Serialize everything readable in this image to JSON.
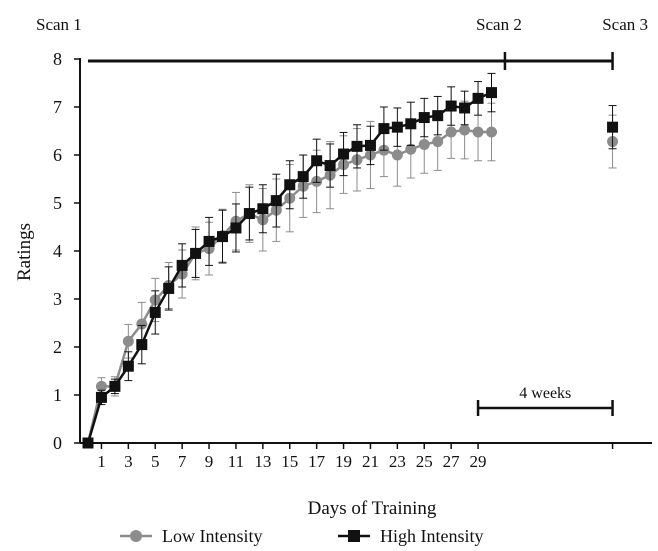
{
  "chart_data": {
    "type": "line",
    "title": "",
    "xlabel": "Days of Training",
    "ylabel": "Ratings",
    "ylim": [
      0,
      8
    ],
    "yticks": [
      "0",
      "1",
      "2",
      "3",
      "4",
      "5",
      "6",
      "7",
      "8"
    ],
    "xticks": [
      "1",
      "3",
      "5",
      "7",
      "9",
      "11",
      "13",
      "15",
      "17",
      "19",
      "21",
      "23",
      "25",
      "27",
      "29"
    ],
    "grid": false,
    "legend_position": "bottom",
    "scan_labels": [
      "Scan 1",
      "Scan 2",
      "Scan 3"
    ],
    "scan_days": [
      0,
      31,
      39
    ],
    "duration_label": "4 weeks",
    "duration_days": [
      29,
      39
    ],
    "x": [
      0,
      1,
      2,
      3,
      4,
      5,
      6,
      7,
      8,
      9,
      10,
      11,
      12,
      13,
      14,
      15,
      16,
      17,
      18,
      19,
      20,
      21,
      22,
      23,
      24,
      25,
      26,
      27,
      28,
      29,
      30
    ],
    "series": [
      {
        "name": "Low Intensity",
        "color": "#8c8c8c",
        "marker": "circle",
        "values": [
          0,
          1.18,
          1.18,
          2.12,
          2.48,
          2.98,
          3.28,
          3.52,
          3.95,
          4.05,
          4.32,
          4.62,
          4.78,
          4.65,
          4.85,
          5.1,
          5.35,
          5.45,
          5.58,
          5.8,
          5.9,
          6.0,
          6.1,
          6.0,
          6.12,
          6.22,
          6.28,
          6.48,
          6.52,
          6.48,
          6.48
        ],
        "errors": [
          0,
          0.18,
          0.2,
          0.35,
          0.45,
          0.45,
          0.48,
          0.5,
          0.55,
          0.55,
          0.55,
          0.6,
          0.6,
          0.65,
          0.65,
          0.7,
          0.65,
          0.65,
          0.7,
          0.6,
          0.65,
          0.7,
          0.55,
          0.65,
          0.6,
          0.6,
          0.6,
          0.55,
          0.6,
          0.6,
          0.6
        ],
        "follow_up": {
          "day": 39,
          "value": 6.28,
          "error": 0.55
        }
      },
      {
        "name": "High Intensity",
        "color": "#111111",
        "marker": "square",
        "values": [
          0,
          0.95,
          1.18,
          1.6,
          2.05,
          2.72,
          3.22,
          3.7,
          3.95,
          4.2,
          4.3,
          4.48,
          4.78,
          4.88,
          5.05,
          5.38,
          5.55,
          5.88,
          5.78,
          6.02,
          6.18,
          6.2,
          6.55,
          6.58,
          6.65,
          6.78,
          6.82,
          7.02,
          6.98,
          7.18,
          7.3
        ],
        "errors": [
          0,
          0.15,
          0.15,
          0.3,
          0.4,
          0.45,
          0.45,
          0.45,
          0.5,
          0.5,
          0.55,
          0.5,
          0.55,
          0.5,
          0.55,
          0.5,
          0.45,
          0.45,
          0.45,
          0.45,
          0.45,
          0.4,
          0.45,
          0.4,
          0.45,
          0.4,
          0.4,
          0.4,
          0.35,
          0.35,
          0.4
        ],
        "follow_up": {
          "day": 39,
          "value": 6.58,
          "error": 0.45
        }
      }
    ]
  }
}
